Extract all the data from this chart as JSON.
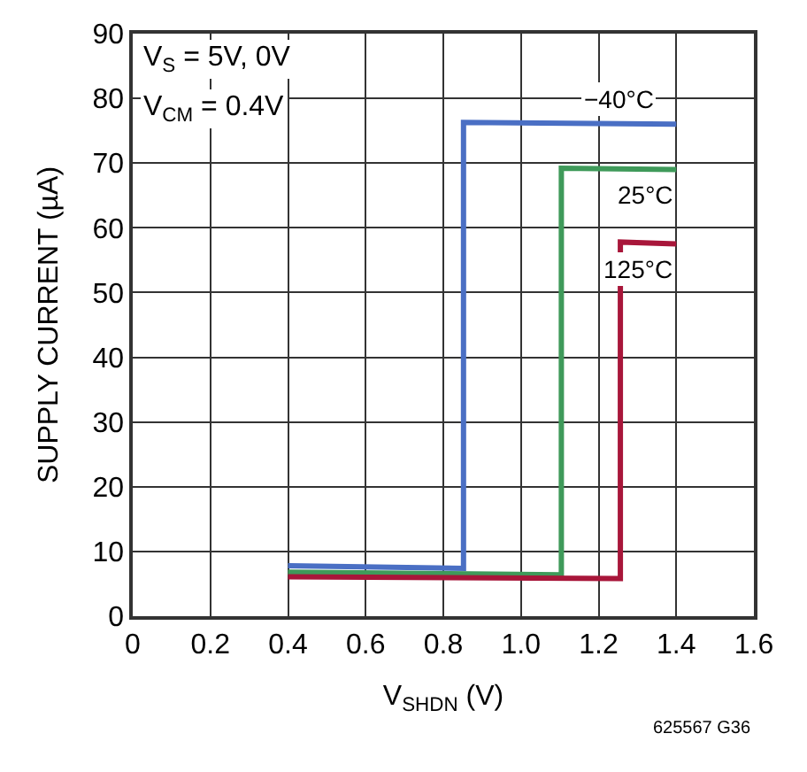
{
  "chart_data": {
    "type": "line",
    "xlabel": "V$_{SHDN}$ (V)",
    "ylabel": "SUPPLY CURRENT (µA)",
    "xlim": [
      0,
      1.6
    ],
    "ylim": [
      0,
      90
    ],
    "xticks": [
      0,
      0.2,
      0.4,
      0.6,
      0.8,
      {
        "value": 1.0,
        "label": "1.0"
      },
      1.2,
      1.4,
      1.6
    ],
    "yticks": [
      0,
      10,
      20,
      30,
      40,
      50,
      60,
      70,
      80,
      90
    ],
    "grid": true,
    "legend": false,
    "line_style": "solid",
    "series": [
      {
        "name": "−40°C",
        "color": "#4a6fc4",
        "x": [
          0.4,
          0.852,
          0.852,
          1.4
        ],
        "values": [
          7.8,
          7.4,
          76.3,
          76.0
        ]
      },
      {
        "name": "25°C",
        "color": "#3f9a5a",
        "x": [
          0.4,
          1.104,
          1.104,
          1.4
        ],
        "values": [
          6.8,
          6.4,
          69.2,
          69.0
        ]
      },
      {
        "name": "125°C",
        "color": "#a8163a",
        "x": [
          0.4,
          1.256,
          1.256,
          1.4
        ],
        "values": [
          6.1,
          5.8,
          57.8,
          57.5
        ]
      }
    ],
    "annotations": [
      "V$_{S}$ = 5V, 0V",
      "V$_{CM}$ = 0.4V",
      "625567 G36"
    ]
  }
}
